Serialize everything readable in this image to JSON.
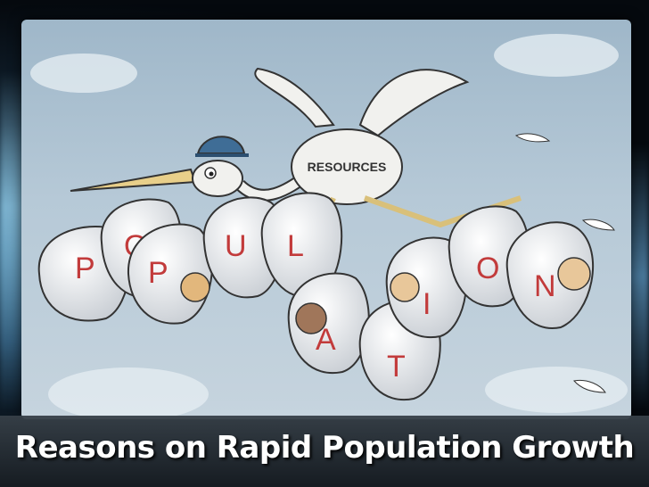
{
  "slide": {
    "title": "Reasons on Rapid Population Growth"
  },
  "cartoon": {
    "bird_label": "RESOURCES",
    "bag_letters": [
      "P",
      "O",
      "P",
      "U",
      "L",
      "A",
      "T",
      "I",
      "O",
      "N"
    ]
  },
  "colors": {
    "sky": "#b6c9d7",
    "bag": "#eef0f2",
    "letter": "#c23b3b",
    "caption_text": "#ffffff"
  }
}
